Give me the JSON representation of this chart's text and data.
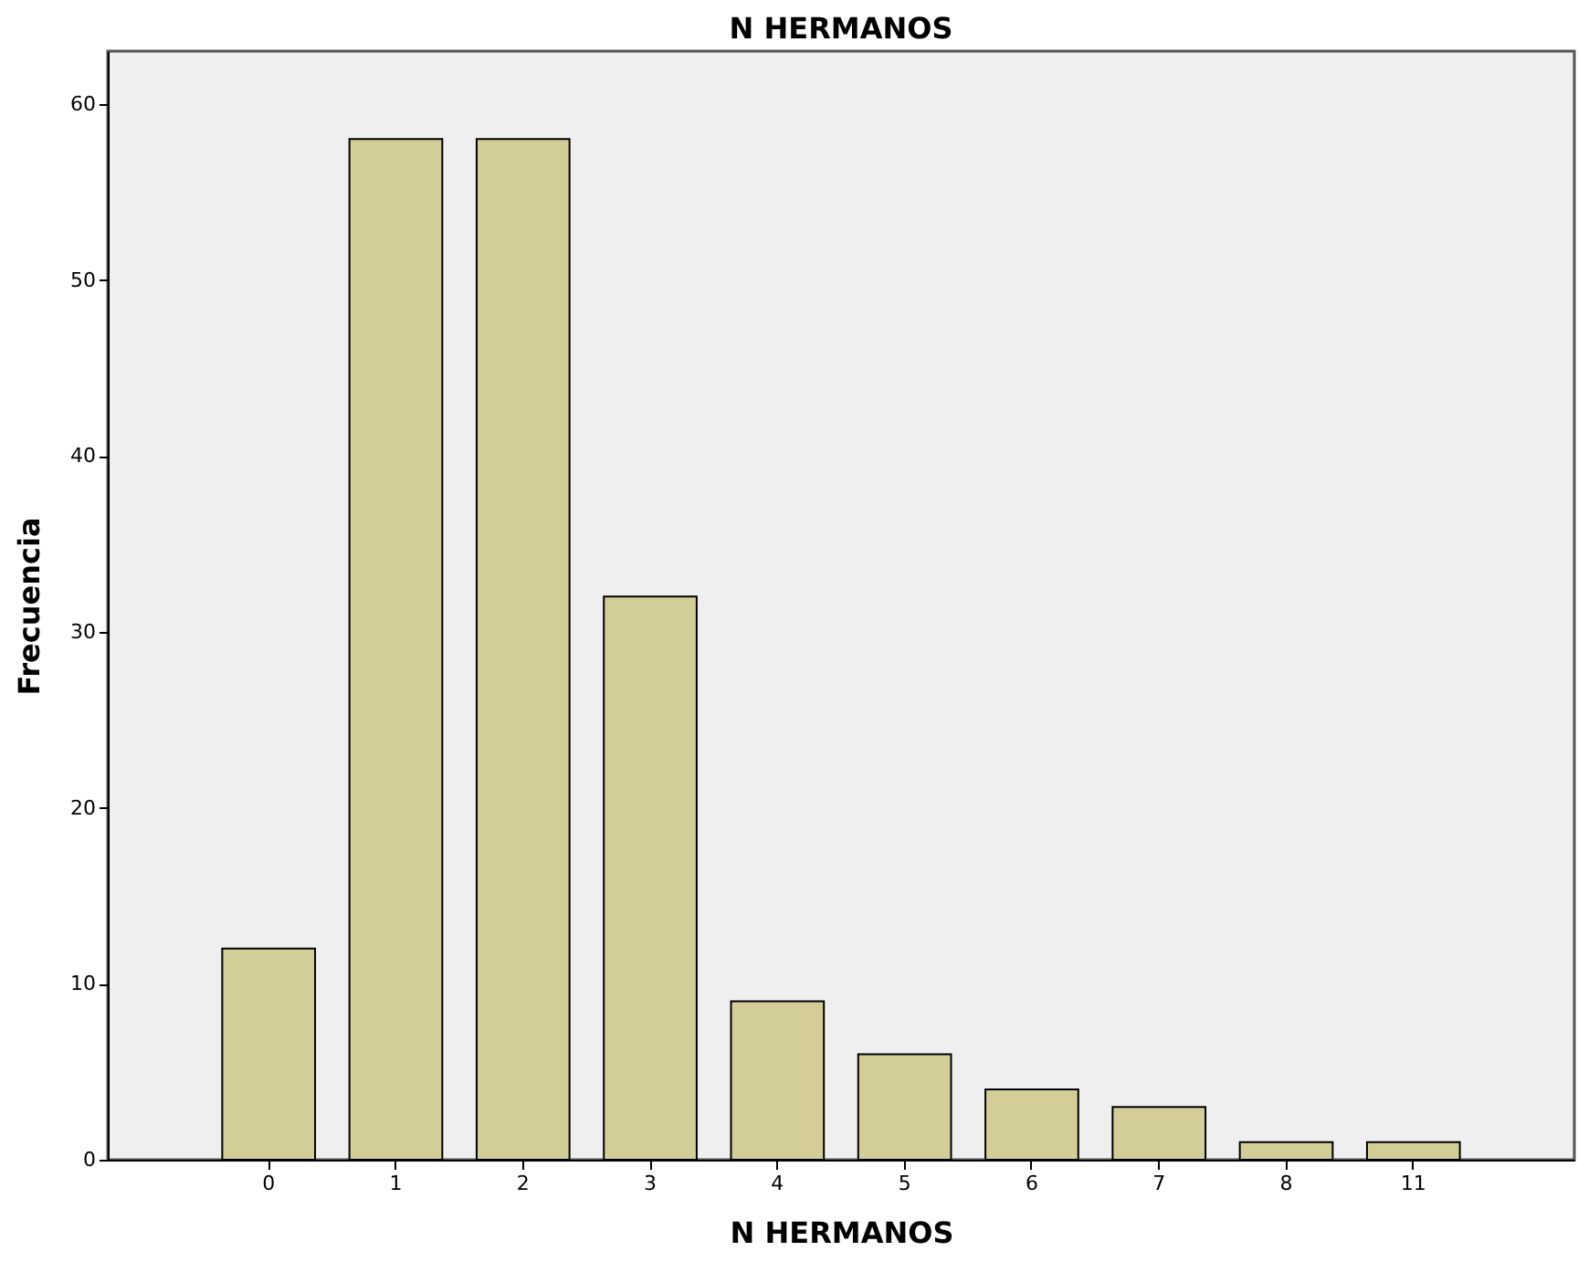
{
  "chart_data": {
    "type": "bar",
    "title": "N HERMANOS",
    "xlabel": "N HERMANOS",
    "ylabel": "Frecuencia",
    "categories": [
      "0",
      "1",
      "2",
      "3",
      "4",
      "5",
      "6",
      "7",
      "8",
      "11"
    ],
    "values": [
      12,
      58,
      58,
      32,
      9,
      6,
      4,
      3,
      1,
      1
    ],
    "color": "#d3ce97",
    "ylim": [
      0,
      63
    ],
    "yticks": [
      0,
      10,
      20,
      30,
      40,
      50,
      60
    ],
    "grid": false
  }
}
